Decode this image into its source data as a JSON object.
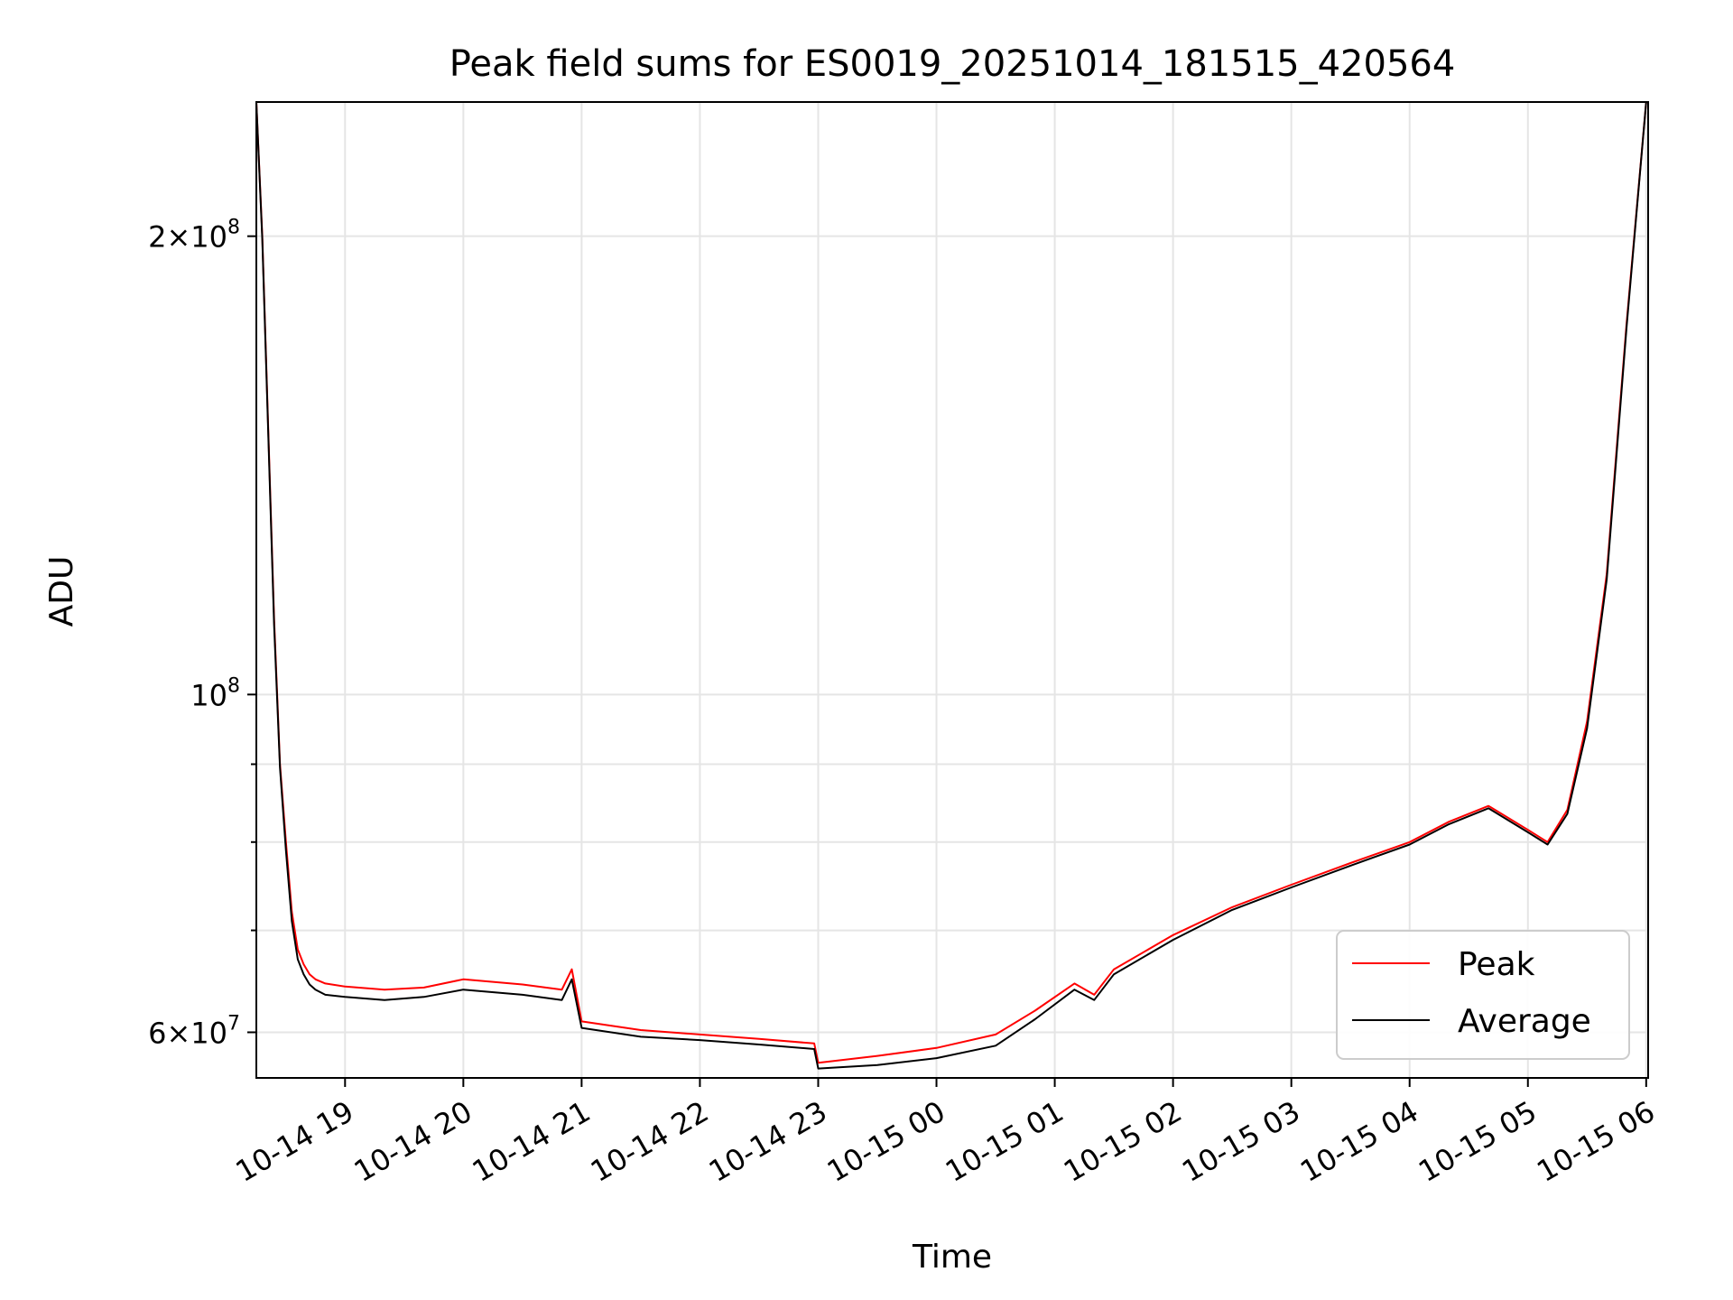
{
  "chart_data": {
    "type": "line",
    "title": "Peak field sums for ES0019_20251014_181515_420564",
    "xlabel": "Time",
    "ylabel": "ADU",
    "yscale": "log",
    "ylim": [
      56000000,
      245000000
    ],
    "xlim": [
      "2025-10-14 18:15",
      "2025-10-15 06:01"
    ],
    "grid": true,
    "legend_position": "lower right",
    "x_ticks": [
      "10-14 19",
      "10-14 20",
      "10-14 21",
      "10-14 22",
      "10-14 23",
      "10-15 00",
      "10-15 01",
      "10-15 02",
      "10-15 03",
      "10-15 04",
      "10-15 05",
      "10-15 06"
    ],
    "x_tick_times": [
      "2025-10-14 19:00",
      "2025-10-14 20:00",
      "2025-10-14 21:00",
      "2025-10-14 22:00",
      "2025-10-14 23:00",
      "2025-10-15 00:00",
      "2025-10-15 01:00",
      "2025-10-15 02:00",
      "2025-10-15 03:00",
      "2025-10-15 04:00",
      "2025-10-15 05:00",
      "2025-10-15 06:00"
    ],
    "y_major_ticks": [
      {
        "value": 200000000,
        "mantissa": "2",
        "exponent": "8"
      },
      {
        "value": 100000000,
        "mantissa": "",
        "exponent": "8"
      },
      {
        "value": 60000000,
        "mantissa": "6",
        "exponent": "7"
      }
    ],
    "y_minor_ticks": [
      70000000,
      80000000,
      90000000
    ],
    "series": [
      {
        "name": "Peak",
        "color": "#ff0000",
        "x": [
          "2025-10-14 18:15",
          "2025-10-14 18:18",
          "2025-10-14 18:21",
          "2025-10-14 18:24",
          "2025-10-14 18:27",
          "2025-10-14 18:30",
          "2025-10-14 18:33",
          "2025-10-14 18:36",
          "2025-10-14 18:39",
          "2025-10-14 18:42",
          "2025-10-14 18:45",
          "2025-10-14 18:50",
          "2025-10-14 19:00",
          "2025-10-14 19:20",
          "2025-10-14 19:40",
          "2025-10-14 20:00",
          "2025-10-14 20:30",
          "2025-10-14 20:50",
          "2025-10-14 20:55",
          "2025-10-14 21:00",
          "2025-10-14 21:30",
          "2025-10-14 22:00",
          "2025-10-14 22:30",
          "2025-10-14 22:58",
          "2025-10-14 23:00",
          "2025-10-14 23:30",
          "2025-10-15 00:00",
          "2025-10-15 00:30",
          "2025-10-15 00:50",
          "2025-10-15 01:10",
          "2025-10-15 01:20",
          "2025-10-15 01:30",
          "2025-10-15 02:00",
          "2025-10-15 02:30",
          "2025-10-15 03:00",
          "2025-10-15 03:30",
          "2025-10-15 04:00",
          "2025-10-15 04:20",
          "2025-10-15 04:40",
          "2025-10-15 05:00",
          "2025-10-15 05:10",
          "2025-10-15 05:20",
          "2025-10-15 05:30",
          "2025-10-15 05:40",
          "2025-10-15 05:50",
          "2025-10-15 06:00"
        ],
        "values": [
          245000000,
          200000000,
          150000000,
          112000000,
          90000000,
          80000000,
          72000000,
          68000000,
          66500000,
          65500000,
          65000000,
          64600000,
          64300000,
          64000000,
          64200000,
          65000000,
          64500000,
          64000000,
          66000000,
          61000000,
          60200000,
          59800000,
          59400000,
          59000000,
          57300000,
          57900000,
          58600000,
          59800000,
          62000000,
          64600000,
          63500000,
          66000000,
          69500000,
          72500000,
          75000000,
          77500000,
          80000000,
          82500000,
          84500000,
          81500000,
          80000000,
          84000000,
          96000000,
          120000000,
          175000000,
          245000000
        ]
      },
      {
        "name": "Average",
        "color": "#000000",
        "x": [
          "2025-10-14 18:15",
          "2025-10-14 18:18",
          "2025-10-14 18:21",
          "2025-10-14 18:24",
          "2025-10-14 18:27",
          "2025-10-14 18:30",
          "2025-10-14 18:33",
          "2025-10-14 18:36",
          "2025-10-14 18:39",
          "2025-10-14 18:42",
          "2025-10-14 18:45",
          "2025-10-14 18:50",
          "2025-10-14 19:00",
          "2025-10-14 19:20",
          "2025-10-14 19:40",
          "2025-10-14 20:00",
          "2025-10-14 20:30",
          "2025-10-14 20:50",
          "2025-10-14 20:55",
          "2025-10-14 21:00",
          "2025-10-14 21:30",
          "2025-10-14 22:00",
          "2025-10-14 22:30",
          "2025-10-14 22:58",
          "2025-10-14 23:00",
          "2025-10-14 23:30",
          "2025-10-15 00:00",
          "2025-10-15 00:30",
          "2025-10-15 00:50",
          "2025-10-15 01:10",
          "2025-10-15 01:20",
          "2025-10-15 01:30",
          "2025-10-15 02:00",
          "2025-10-15 02:30",
          "2025-10-15 03:00",
          "2025-10-15 03:30",
          "2025-10-15 04:00",
          "2025-10-15 04:20",
          "2025-10-15 04:40",
          "2025-10-15 05:00",
          "2025-10-15 05:10",
          "2025-10-15 05:20",
          "2025-10-15 05:30",
          "2025-10-15 05:40",
          "2025-10-15 05:50",
          "2025-10-15 06:00"
        ],
        "values": [
          245000000,
          199000000,
          149000000,
          111000000,
          89500000,
          79000000,
          71000000,
          67000000,
          65500000,
          64500000,
          64000000,
          63500000,
          63300000,
          63000000,
          63300000,
          64000000,
          63500000,
          63000000,
          65000000,
          60400000,
          59600000,
          59300000,
          58900000,
          58500000,
          56800000,
          57100000,
          57700000,
          58800000,
          61200000,
          64000000,
          63000000,
          65500000,
          69000000,
          72200000,
          74700000,
          77200000,
          79700000,
          82200000,
          84200000,
          81200000,
          79700000,
          83500000,
          95000000,
          119000000,
          174000000,
          245000000
        ]
      }
    ]
  }
}
